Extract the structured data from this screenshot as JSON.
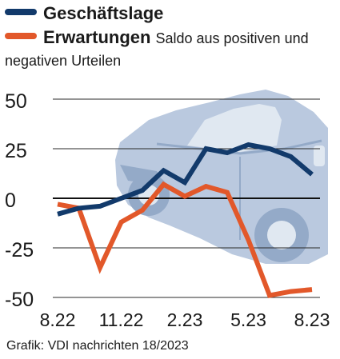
{
  "legend": {
    "series1": "Geschäftslage",
    "series2": "Erwartungen",
    "note_line1": "Saldo aus positiven und",
    "note_line2": "negativen Urteilen"
  },
  "source": "Grafik: VDI nachrichten 18/2023",
  "colors": {
    "geschaeftslage": "#123a6b",
    "erwartungen": "#e2582a",
    "grid": "#2a2a2a",
    "zero_line": "#111111",
    "car_body": "#b7c7de",
    "car_dark": "#8fa6c6",
    "car_light": "#dfe7f1"
  },
  "chart_data": {
    "type": "line",
    "title": "",
    "ylim": [
      -50,
      50
    ],
    "yticks": [
      "50",
      "25",
      "0",
      "-25",
      "-50"
    ],
    "ytick_values": [
      50,
      25,
      0,
      -25,
      -50
    ],
    "x_tick_labels": [
      "8.22",
      "11.22",
      "2.23",
      "5.23",
      "8.23"
    ],
    "x_tick_index": [
      0,
      3,
      6,
      9,
      12
    ],
    "x": [
      "8.22",
      "9.22",
      "10.22",
      "11.22",
      "12.22",
      "1.23",
      "2.23",
      "3.23",
      "4.23",
      "5.23",
      "6.23",
      "7.23",
      "8.23"
    ],
    "series": [
      {
        "name": "Geschäftslage",
        "values": [
          -8,
          -5,
          -4,
          0,
          4,
          14,
          8,
          25,
          23,
          27,
          25,
          21,
          12
        ]
      },
      {
        "name": "Erwartungen",
        "values": [
          -3,
          -5,
          -35,
          -12,
          -6,
          7,
          1,
          6,
          3,
          -21,
          -49,
          -47,
          -46
        ]
      }
    ],
    "grid": true,
    "background_image": "car-illustration"
  }
}
